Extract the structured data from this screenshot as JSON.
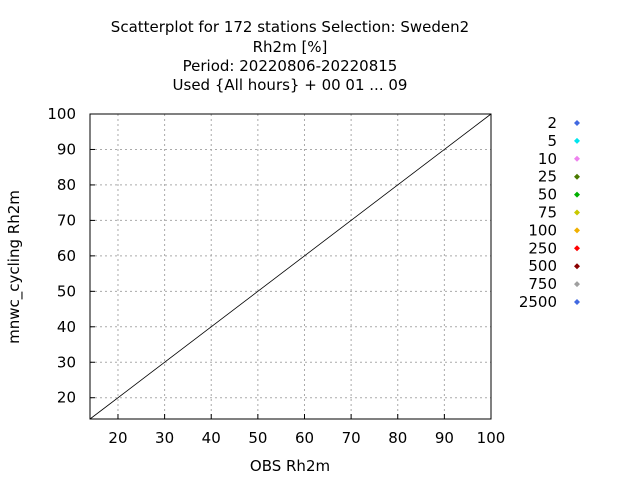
{
  "chart_data": {
    "type": "scatter",
    "title_lines": [
      "Scatterplot for  172 stations Selection: Sweden2",
      "Rh2m [%]",
      "Period: 20220806-20220815",
      "Used {All hours} + 00 01 ... 09"
    ],
    "xlabel": "OBS Rh2m",
    "ylabel": "mnwc_cycling Rh2m",
    "xlim": [
      14,
      100
    ],
    "ylim": [
      14,
      100
    ],
    "xticks": [
      20,
      30,
      40,
      50,
      60,
      70,
      80,
      90,
      100
    ],
    "yticks": [
      20,
      30,
      40,
      50,
      60,
      70,
      80,
      90,
      100
    ],
    "grid": true,
    "diagonal_line": true,
    "legend_placement": "right",
    "density_classes": [
      {
        "label": "2",
        "color": "#4169e1"
      },
      {
        "label": "5",
        "color": "#00e5ee"
      },
      {
        "label": "10",
        "color": "#ee82ee"
      },
      {
        "label": "25",
        "color": "#4a7a00"
      },
      {
        "label": "50",
        "color": "#00b000"
      },
      {
        "label": "75",
        "color": "#c8c800"
      },
      {
        "label": "100",
        "color": "#f0b000"
      },
      {
        "label": "250",
        "color": "#ff0000"
      },
      {
        "label": "500",
        "color": "#8b0000"
      },
      {
        "label": "750",
        "color": "#a0a0a0"
      },
      {
        "label": "2500",
        "color": "#4169e1"
      }
    ],
    "density_band_half_widths": [
      22,
      18,
      15,
      12,
      9,
      7,
      5.5,
      4,
      1.5,
      0.8,
      0.4
    ]
  }
}
